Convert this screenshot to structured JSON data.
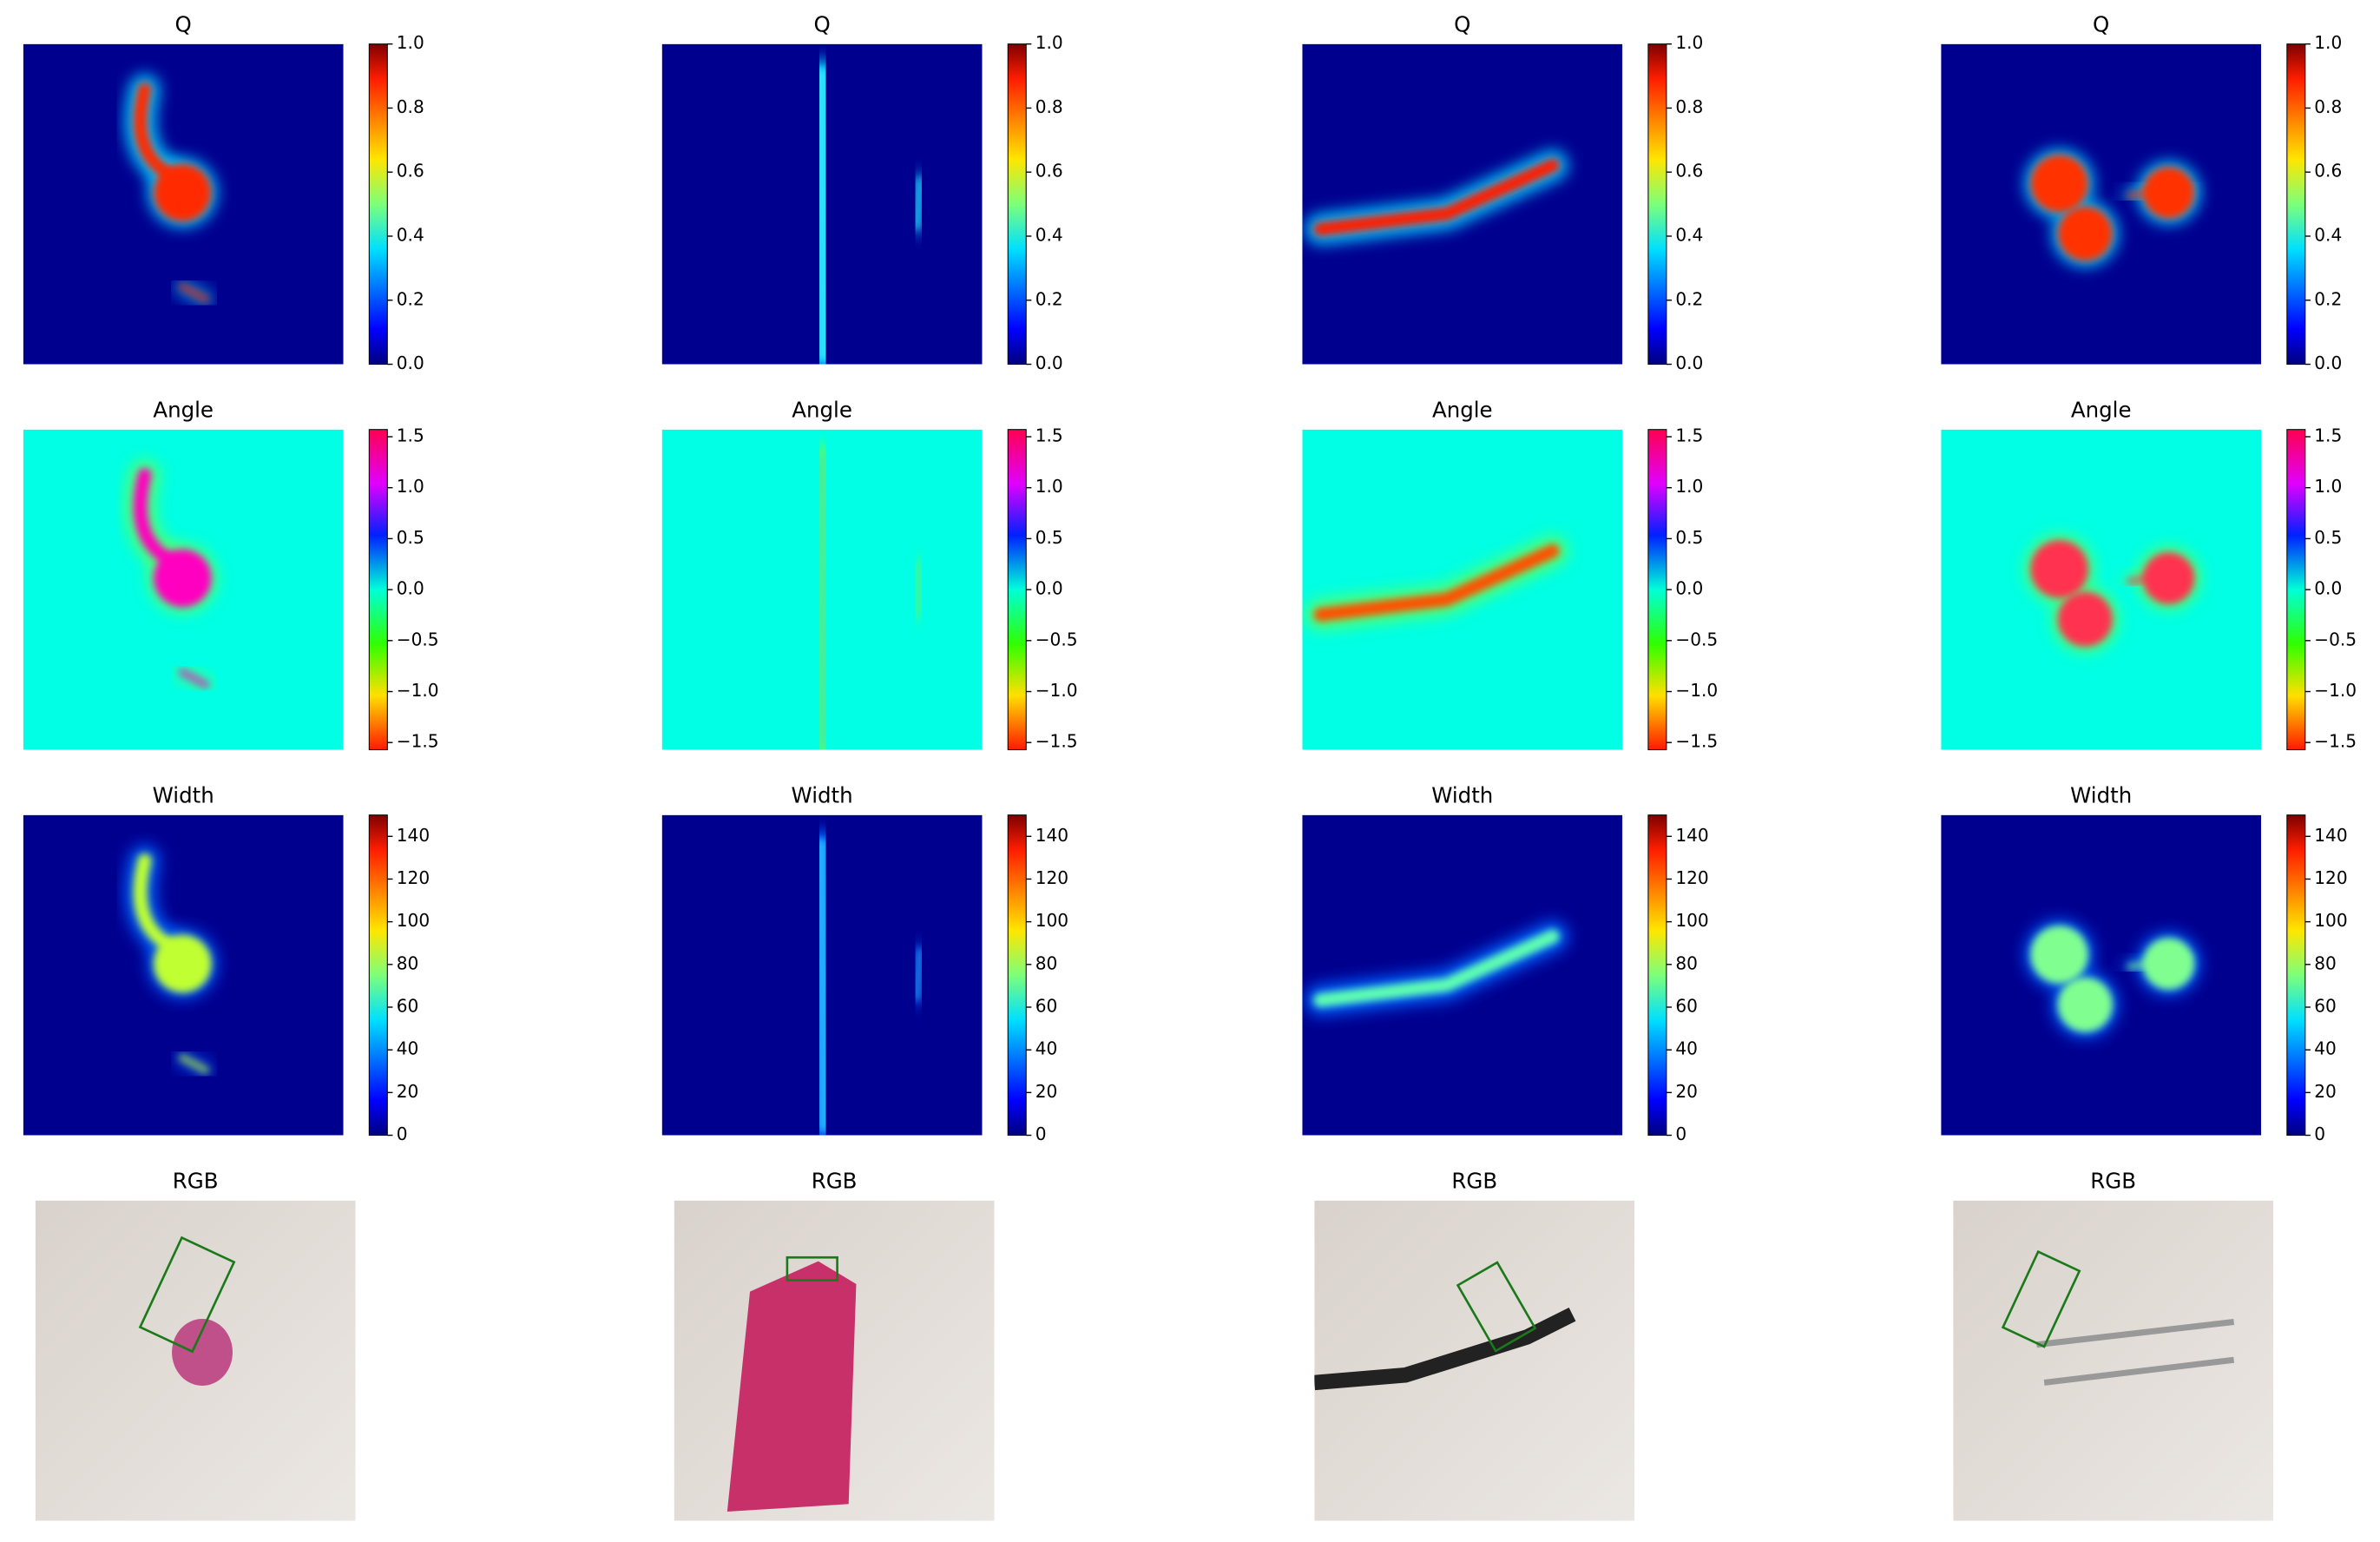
{
  "columns": 4,
  "rows": [
    {
      "title": "Q",
      "cmap": "jet",
      "colorbar": {
        "ylim": [
          0,
          1
        ],
        "yticks": [
          {
            "value": 0,
            "label": "0.0"
          },
          0.2,
          0.4,
          0.6,
          0.8,
          {
            "value": 1,
            "label": "1.0"
          }
        ]
      }
    },
    {
      "title": "Angle",
      "cmap": "hsv",
      "colorbar": {
        "ylim": [
          -1.5708,
          1.5708
        ],
        "yticks": [
          {
            "value": -1.5,
            "label": "−1.5"
          },
          {
            "value": -1,
            "label": "−1.0"
          },
          {
            "value": -0.5,
            "label": "−0.5"
          },
          {
            "value": 0,
            "label": "0.0"
          },
          0.5,
          {
            "value": 1,
            "label": "1.0"
          },
          1.5
        ]
      }
    },
    {
      "title": "Width",
      "cmap": "jet",
      "colorbar": {
        "ylim": [
          0,
          150
        ],
        "yticks": [
          0,
          20,
          40,
          60,
          80,
          100,
          120,
          140
        ]
      }
    },
    {
      "title": "RGB",
      "cmap": "rgb"
    }
  ]
}
